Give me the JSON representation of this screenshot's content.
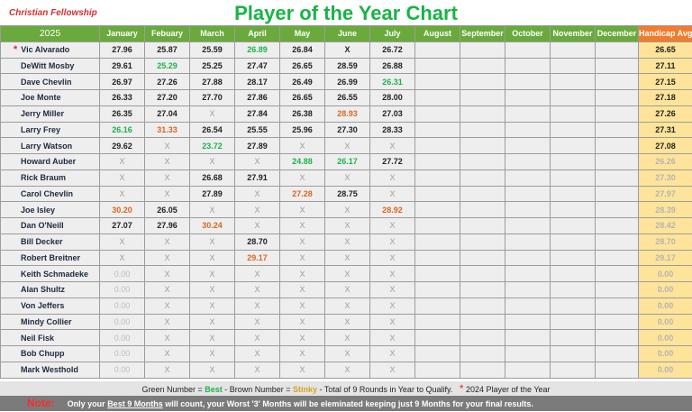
{
  "header": {
    "org": "Christian Fellowship",
    "title": "Player of the Year Chart"
  },
  "table": {
    "year": "2025",
    "months": [
      "January",
      "Febuary",
      "March",
      "April",
      "May",
      "June",
      "July",
      "August",
      "September",
      "October",
      "November",
      "December"
    ],
    "handicap_header": "Handicap Avg",
    "rows": [
      {
        "name": "Vic Alvarado",
        "star": "*",
        "cells": [
          [
            "27.96",
            ""
          ],
          [
            "25.87",
            ""
          ],
          [
            "25.59",
            ""
          ],
          [
            "26.89",
            "g"
          ],
          [
            "26.84",
            ""
          ],
          [
            "X",
            "xb"
          ],
          [
            "26.72",
            ""
          ]
        ],
        "hcp": "26.65",
        "dim": false
      },
      {
        "name": "DeWitt Mosby",
        "cells": [
          [
            "29.61",
            ""
          ],
          [
            "25.29",
            "g"
          ],
          [
            "25.25",
            ""
          ],
          [
            "27.47",
            ""
          ],
          [
            "26.65",
            ""
          ],
          [
            "28.59",
            ""
          ],
          [
            "26.88",
            ""
          ]
        ],
        "hcp": "27.11",
        "dim": false
      },
      {
        "name": "Dave Chevlin",
        "cells": [
          [
            "26.97",
            ""
          ],
          [
            "27.26",
            ""
          ],
          [
            "27.88",
            ""
          ],
          [
            "28.17",
            ""
          ],
          [
            "26.49",
            ""
          ],
          [
            "26.99",
            ""
          ],
          [
            "26.31",
            "g"
          ]
        ],
        "hcp": "27.15",
        "dim": false
      },
      {
        "name": "Joe Monte",
        "cells": [
          [
            "26.33",
            ""
          ],
          [
            "27.20",
            ""
          ],
          [
            "27.70",
            ""
          ],
          [
            "27.86",
            ""
          ],
          [
            "26.65",
            ""
          ],
          [
            "26.55",
            ""
          ],
          [
            "28.00",
            ""
          ]
        ],
        "hcp": "27.18",
        "dim": false
      },
      {
        "name": "Jerry Miller",
        "cells": [
          [
            "26.35",
            ""
          ],
          [
            "27.04",
            ""
          ],
          [
            "X",
            "x"
          ],
          [
            "27.84",
            ""
          ],
          [
            "26.38",
            ""
          ],
          [
            "28.93",
            "b"
          ],
          [
            "27.03",
            ""
          ]
        ],
        "hcp": "27.26",
        "dim": false
      },
      {
        "name": "Larry Frey",
        "cells": [
          [
            "26.16",
            "g"
          ],
          [
            "31.33",
            "b"
          ],
          [
            "26.54",
            ""
          ],
          [
            "25.55",
            ""
          ],
          [
            "25.96",
            ""
          ],
          [
            "27.30",
            ""
          ],
          [
            "28.33",
            ""
          ]
        ],
        "hcp": "27.31",
        "dim": false
      },
      {
        "name": "Larry Watson",
        "cells": [
          [
            "29.62",
            ""
          ],
          [
            "X",
            "x"
          ],
          [
            "23.72",
            "g"
          ],
          [
            "27.89",
            ""
          ],
          [
            "X",
            "x"
          ],
          [
            "X",
            "x"
          ],
          [
            "X",
            "x"
          ]
        ],
        "hcp": "27.08",
        "dim": false
      },
      {
        "name": "Howard Auber",
        "cells": [
          [
            "X",
            "x"
          ],
          [
            "X",
            "x"
          ],
          [
            "X",
            "x"
          ],
          [
            "X",
            "x"
          ],
          [
            "24.88",
            "g"
          ],
          [
            "26.17",
            "g"
          ],
          [
            "27.72",
            ""
          ]
        ],
        "hcp": "26.26",
        "dim": true
      },
      {
        "name": "Rick Braum",
        "cells": [
          [
            "X",
            "x"
          ],
          [
            "X",
            "x"
          ],
          [
            "26.68",
            ""
          ],
          [
            "27.91",
            ""
          ],
          [
            "X",
            "x"
          ],
          [
            "X",
            "x"
          ],
          [
            "X",
            "x"
          ]
        ],
        "hcp": "27.30",
        "dim": true
      },
      {
        "name": "Carol Chevlin",
        "cells": [
          [
            "X",
            "x"
          ],
          [
            "X",
            "x"
          ],
          [
            "27.89",
            ""
          ],
          [
            "X",
            "x"
          ],
          [
            "27.28",
            "b"
          ],
          [
            "28.75",
            ""
          ],
          [
            "X",
            "x"
          ]
        ],
        "hcp": "27.97",
        "dim": true
      },
      {
        "name": "Joe Isley",
        "cells": [
          [
            "30.20",
            "b"
          ],
          [
            "26.05",
            ""
          ],
          [
            "X",
            "x"
          ],
          [
            "X",
            "x"
          ],
          [
            "X",
            "x"
          ],
          [
            "X",
            "x"
          ],
          [
            "28.92",
            "b"
          ]
        ],
        "hcp": "28.39",
        "dim": true
      },
      {
        "name": "Dan O'Neill",
        "cells": [
          [
            "27.07",
            ""
          ],
          [
            "27.96",
            ""
          ],
          [
            "30.24",
            "b"
          ],
          [
            "X",
            "x"
          ],
          [
            "X",
            "x"
          ],
          [
            "X",
            "x"
          ],
          [
            "X",
            "x"
          ]
        ],
        "hcp": "28.42",
        "dim": true
      },
      {
        "name": "Bill Decker",
        "cells": [
          [
            "X",
            "x"
          ],
          [
            "X",
            "x"
          ],
          [
            "X",
            "x"
          ],
          [
            "28.70",
            ""
          ],
          [
            "X",
            "x"
          ],
          [
            "X",
            "x"
          ],
          [
            "X",
            "x"
          ]
        ],
        "hcp": "28.70",
        "dim": true
      },
      {
        "name": "Robert Breitner",
        "cells": [
          [
            "X",
            "x"
          ],
          [
            "X",
            "x"
          ],
          [
            "X",
            "x"
          ],
          [
            "29.17",
            "b"
          ],
          [
            "X",
            "x"
          ],
          [
            "X",
            "x"
          ],
          [
            "X",
            "x"
          ]
        ],
        "hcp": "29.17",
        "dim": true
      },
      {
        "name": "Keith Schmadeke",
        "cells": [
          [
            "0.00",
            "z"
          ],
          [
            "X",
            "x"
          ],
          [
            "X",
            "x"
          ],
          [
            "X",
            "x"
          ],
          [
            "X",
            "x"
          ],
          [
            "X",
            "x"
          ],
          [
            "X",
            "x"
          ]
        ],
        "hcp": "0.00",
        "dim": true
      },
      {
        "name": "Alan Shultz",
        "cells": [
          [
            "0.00",
            "z"
          ],
          [
            "X",
            "x"
          ],
          [
            "X",
            "x"
          ],
          [
            "X",
            "x"
          ],
          [
            "X",
            "x"
          ],
          [
            "X",
            "x"
          ],
          [
            "X",
            "x"
          ]
        ],
        "hcp": "0.00",
        "dim": true
      },
      {
        "name": "Von Jeffers",
        "cells": [
          [
            "0.00",
            "z"
          ],
          [
            "X",
            "x"
          ],
          [
            "X",
            "x"
          ],
          [
            "X",
            "x"
          ],
          [
            "X",
            "x"
          ],
          [
            "X",
            "x"
          ],
          [
            "X",
            "x"
          ]
        ],
        "hcp": "0.00",
        "dim": true
      },
      {
        "name": "Mindy Collier",
        "cells": [
          [
            "0.00",
            "z"
          ],
          [
            "X",
            "x"
          ],
          [
            "X",
            "x"
          ],
          [
            "X",
            "x"
          ],
          [
            "X",
            "x"
          ],
          [
            "X",
            "x"
          ],
          [
            "X",
            "x"
          ]
        ],
        "hcp": "0.00",
        "dim": true
      },
      {
        "name": "Neil Fisk",
        "cells": [
          [
            "0.00",
            "z"
          ],
          [
            "X",
            "x"
          ],
          [
            "X",
            "x"
          ],
          [
            "X",
            "x"
          ],
          [
            "X",
            "x"
          ],
          [
            "X",
            "x"
          ],
          [
            "X",
            "x"
          ]
        ],
        "hcp": "0.00",
        "dim": true
      },
      {
        "name": "Bob Chupp",
        "cells": [
          [
            "0.00",
            "z"
          ],
          [
            "X",
            "x"
          ],
          [
            "X",
            "x"
          ],
          [
            "X",
            "x"
          ],
          [
            "X",
            "x"
          ],
          [
            "X",
            "x"
          ],
          [
            "X",
            "x"
          ]
        ],
        "hcp": "0.00",
        "dim": true
      },
      {
        "name": "Mark Westhold",
        "cells": [
          [
            "0.00",
            "z"
          ],
          [
            "X",
            "x"
          ],
          [
            "X",
            "x"
          ],
          [
            "X",
            "x"
          ],
          [
            "X",
            "x"
          ],
          [
            "X",
            "x"
          ],
          [
            "X",
            "x"
          ]
        ],
        "hcp": "0.00",
        "dim": true
      }
    ]
  },
  "legend": {
    "green_prefix": "Green Number = ",
    "best": "Best",
    "brown_mid": " -  Brown Number = ",
    "stinky": "Stinky",
    "rounds": " -  Total of 9 Rounds in Year to Qualify.",
    "star": "*",
    "poy": " 2024 Player of the Year"
  },
  "note": {
    "label": "Note:",
    "pre": "Only your ",
    "best9": "Best 9 Months",
    "mid": " will count, your Worst '3' Months will be eleminated keeping just 9 Months for your final results."
  },
  "colors": {
    "green": "#19b347",
    "brown": "#d9661f",
    "header_green": "#6aaa3c",
    "header_orange": "#f07c2e",
    "handicap_bg": "#fde49a"
  }
}
